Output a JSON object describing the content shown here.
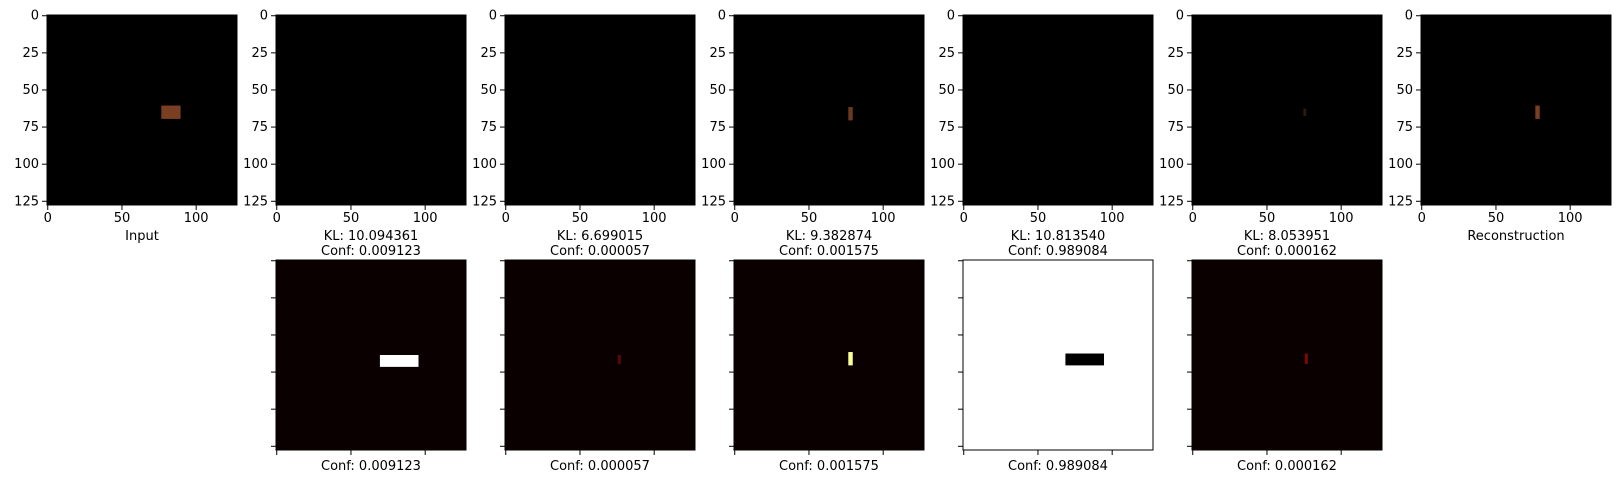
{
  "chart_data": [
    {
      "type": "heatmap",
      "panel": "Input",
      "bg": "#000000",
      "xticks": [
        "0",
        "50",
        "100"
      ],
      "yticks": [
        "0",
        "25",
        "50",
        "75",
        "100",
        "125"
      ],
      "xlabel": "Input",
      "blob": {
        "x": [
          77,
          90
        ],
        "y": [
          61,
          70
        ],
        "color": "#7a3f22"
      }
    },
    {
      "type": "heatmap",
      "panel": "Slot 1",
      "bg": "#000000",
      "xticks": [
        "0",
        "50",
        "100"
      ],
      "yticks": [
        "0",
        "25",
        "50",
        "75",
        "100",
        "125"
      ],
      "xlabel": [
        "KL: 10.094361",
        "Conf: 0.009123"
      ],
      "blob": null
    },
    {
      "type": "heatmap",
      "panel": "Slot 2",
      "bg": "#000000",
      "xticks": [
        "0",
        "50",
        "100"
      ],
      "yticks": [
        "0",
        "25",
        "50",
        "75",
        "100",
        "125"
      ],
      "xlabel": [
        "KL: 6.699015",
        "Conf: 0.000057"
      ],
      "blob": null
    },
    {
      "type": "heatmap",
      "panel": "Slot 3",
      "bg": "#000000",
      "xticks": [
        "0",
        "50",
        "100"
      ],
      "yticks": [
        "0",
        "25",
        "50",
        "75",
        "100",
        "125"
      ],
      "xlabel": [
        "KL: 9.382874",
        "Conf: 0.001575"
      ],
      "blob": {
        "x": [
          77,
          80
        ],
        "y": [
          62,
          71
        ],
        "color": "#6a3a20"
      }
    },
    {
      "type": "heatmap",
      "panel": "Slot 4",
      "bg": "#000000",
      "xticks": [
        "0",
        "50",
        "100"
      ],
      "yticks": [
        "0",
        "25",
        "50",
        "75",
        "100",
        "125"
      ],
      "xlabel": [
        "KL: 10.813540",
        "Conf: 0.989084"
      ],
      "blob": null
    },
    {
      "type": "heatmap",
      "panel": "Slot 5",
      "bg": "#000000",
      "xticks": [
        "0",
        "50",
        "100"
      ],
      "yticks": [
        "0",
        "25",
        "50",
        "75",
        "100",
        "125"
      ],
      "xlabel": [
        "KL: 8.053951",
        "Conf: 0.000162"
      ],
      "blob": {
        "x": [
          75,
          77
        ],
        "y": [
          63,
          68
        ],
        "color": "#2a1a10"
      }
    },
    {
      "type": "heatmap",
      "panel": "Reconstruction",
      "bg": "#000000",
      "xticks": [
        "0",
        "50",
        "100"
      ],
      "yticks": [
        "0",
        "25",
        "50",
        "75",
        "100",
        "125"
      ],
      "xlabel": "Reconstruction",
      "blob": {
        "x": [
          77,
          80
        ],
        "y": [
          61,
          70
        ],
        "color": "#7a3f22"
      }
    },
    {
      "type": "heatmap",
      "panel": "Mask 1",
      "bg": "#0b0000",
      "xlabel": "Conf: 0.009123",
      "blob": {
        "x": [
          70,
          96
        ],
        "y": [
          64,
          72
        ],
        "color": "#ffffff"
      }
    },
    {
      "type": "heatmap",
      "panel": "Mask 2",
      "bg": "#0b0000",
      "xlabel": "Conf: 0.000057",
      "blob": {
        "x": [
          76,
          78
        ],
        "y": [
          64,
          70
        ],
        "color": "#5a0a00"
      }
    },
    {
      "type": "heatmap",
      "panel": "Mask 3",
      "bg": "#0b0000",
      "xlabel": "Conf: 0.001575",
      "blob": {
        "x": [
          77,
          80
        ],
        "y": [
          62,
          71
        ],
        "color": "#ffff99"
      }
    },
    {
      "type": "heatmap",
      "panel": "Mask 4",
      "bg": "#ffffff",
      "xlabel": "Conf: 0.989084",
      "blob": {
        "x": [
          69,
          95
        ],
        "y": [
          63,
          71
        ],
        "color": "#000000"
      }
    },
    {
      "type": "heatmap",
      "panel": "Mask 5",
      "bg": "#0b0000",
      "xlabel": "Conf: 0.000162",
      "blob": {
        "x": [
          76,
          78
        ],
        "y": [
          63,
          70
        ],
        "color": "#7a0a00"
      }
    }
  ]
}
